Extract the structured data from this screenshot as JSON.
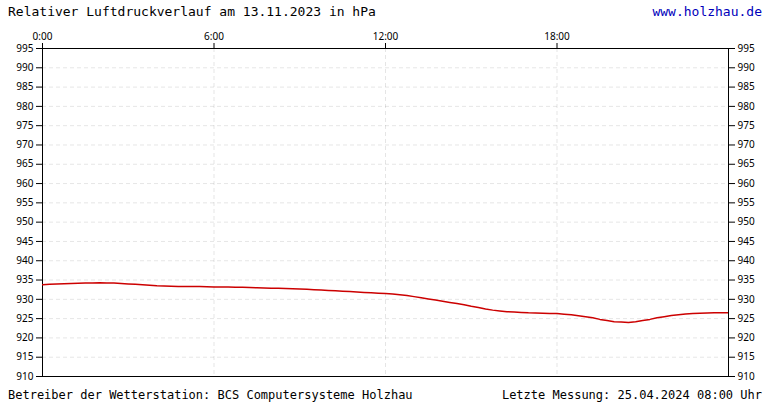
{
  "chart_data": {
    "type": "line",
    "title": "Relativer Luftdruckverlauf am 13.11.2023 in hPa",
    "annotations": [
      "www.holzhau.de",
      "Betreiber der Wetterstation: BCS Computersysteme Holzhau",
      "Letzte Messung: 25.04.2024 08:00 Uhr"
    ],
    "x": [
      0.0,
      0.25,
      0.5,
      0.75,
      1.0,
      1.25,
      1.5,
      1.75,
      2.0,
      2.25,
      2.5,
      2.75,
      3.0,
      3.25,
      3.5,
      3.75,
      4.0,
      4.25,
      4.5,
      4.75,
      5.0,
      5.25,
      5.5,
      5.75,
      6.0,
      6.25,
      6.5,
      6.75,
      7.0,
      7.25,
      7.5,
      7.75,
      8.0,
      8.25,
      8.5,
      8.75,
      9.0,
      9.25,
      9.5,
      9.75,
      10.0,
      10.25,
      10.5,
      10.75,
      11.0,
      11.25,
      11.5,
      11.75,
      12.0,
      12.25,
      12.5,
      12.75,
      13.0,
      13.25,
      13.5,
      13.75,
      14.0,
      14.25,
      14.5,
      14.75,
      15.0,
      15.25,
      15.5,
      15.75,
      16.0,
      16.25,
      16.5,
      16.75,
      17.0,
      17.25,
      17.5,
      17.75,
      18.0,
      18.25,
      18.5,
      18.75,
      19.0,
      19.25,
      19.5,
      19.75,
      20.0,
      20.25,
      20.5,
      20.75,
      21.0,
      21.25,
      21.5,
      21.75,
      22.0,
      22.25,
      22.5,
      22.75,
      23.0,
      23.25,
      23.5,
      23.75,
      24.0
    ],
    "values": [
      933.8,
      933.9,
      934.0,
      934.05,
      934.1,
      934.15,
      934.2,
      934.25,
      934.3,
      934.25,
      934.2,
      934.1,
      934.0,
      933.9,
      933.8,
      933.65,
      933.5,
      933.45,
      933.4,
      933.35,
      933.3,
      933.3,
      933.3,
      933.25,
      933.2,
      933.2,
      933.2,
      933.15,
      933.1,
      933.05,
      933.0,
      932.95,
      932.9,
      932.85,
      932.8,
      932.75,
      932.7,
      932.6,
      932.5,
      932.4,
      932.3,
      932.2,
      932.1,
      932.0,
      931.9,
      931.8,
      931.7,
      931.6,
      931.5,
      931.4,
      931.2,
      931.0,
      930.7,
      930.4,
      930.1,
      929.8,
      929.5,
      929.2,
      928.9,
      928.6,
      928.2,
      927.9,
      927.5,
      927.2,
      927.0,
      926.8,
      926.7,
      926.6,
      926.5,
      926.45,
      926.4,
      926.35,
      926.3,
      926.15,
      926.0,
      925.75,
      925.5,
      925.2,
      924.8,
      924.5,
      924.2,
      924.1,
      924.0,
      924.2,
      924.5,
      924.8,
      925.2,
      925.5,
      925.8,
      926.0,
      926.2,
      926.3,
      926.4,
      926.45,
      926.5,
      926.5,
      926.5
    ],
    "color": "#cc0000",
    "xlim": [
      0,
      24
    ],
    "xticks": [
      {
        "value": 0,
        "label": "0:00"
      },
      {
        "value": 6,
        "label": "6:00"
      },
      {
        "value": 12,
        "label": "12:00"
      },
      {
        "value": 18,
        "label": "18:00"
      }
    ],
    "ylim": [
      910,
      995
    ],
    "yticks": [
      910,
      915,
      920,
      925,
      930,
      935,
      940,
      945,
      950,
      955,
      960,
      965,
      970,
      975,
      980,
      985,
      990,
      995
    ],
    "grid": true
  }
}
